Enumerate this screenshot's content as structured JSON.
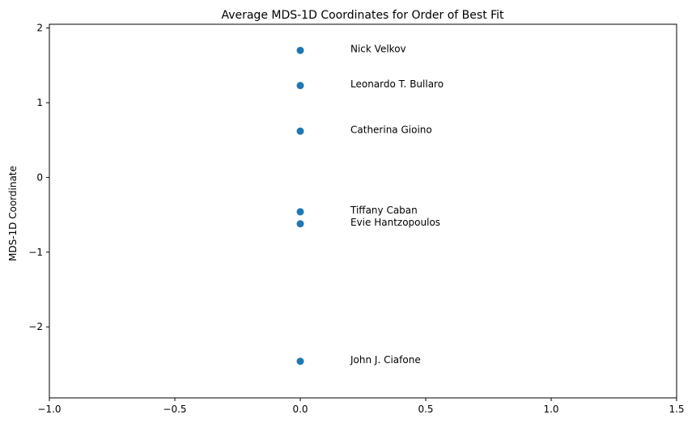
{
  "chart_data": {
    "type": "scatter",
    "title": "Average MDS-1D Coordinates for Order of Best Fit",
    "xlabel": "",
    "ylabel": "MDS-1D Coordinate",
    "xlim": [
      -1.0,
      1.5
    ],
    "ylim": [
      -2.95,
      2.05
    ],
    "grid": false,
    "legend": "none",
    "marker_color": "#1f77b4",
    "xticks": [
      {
        "value": -1.0,
        "label": "−1.0"
      },
      {
        "value": -0.5,
        "label": "−0.5"
      },
      {
        "value": 0.0,
        "label": "0.0"
      },
      {
        "value": 0.5,
        "label": "0.5"
      },
      {
        "value": 1.0,
        "label": "1.0"
      },
      {
        "value": 1.5,
        "label": "1.5"
      }
    ],
    "yticks": [
      {
        "value": 2,
        "label": "2"
      },
      {
        "value": 1,
        "label": "1"
      },
      {
        "value": 0,
        "label": "0"
      },
      {
        "value": -1,
        "label": "−1"
      },
      {
        "value": -2,
        "label": "−2"
      }
    ],
    "points": [
      {
        "x": 0.0,
        "y": 1.7,
        "label": "Nick Velkov",
        "label_x": 0.2,
        "label_y": 1.72
      },
      {
        "x": 0.0,
        "y": 1.23,
        "label": "Leonardo T. Bullaro",
        "label_x": 0.2,
        "label_y": 1.25
      },
      {
        "x": 0.0,
        "y": 0.62,
        "label": "Catherina Gioino",
        "label_x": 0.2,
        "label_y": 0.64
      },
      {
        "x": 0.0,
        "y": -0.46,
        "label": "Tiffany Caban",
        "label_x": 0.2,
        "label_y": -0.44
      },
      {
        "x": 0.0,
        "y": -0.62,
        "label": "Evie Hantzopoulos",
        "label_x": 0.2,
        "label_y": -0.6
      },
      {
        "x": 0.0,
        "y": -2.46,
        "label": "John J. Ciafone",
        "label_x": 0.2,
        "label_y": -2.44
      }
    ]
  }
}
